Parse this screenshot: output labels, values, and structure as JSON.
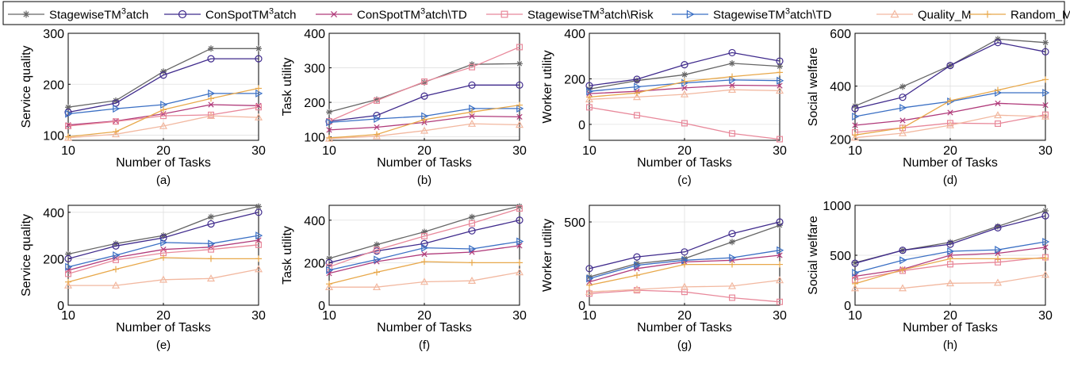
{
  "legend": {
    "placement": "top",
    "entries": [
      {
        "name": "StagewiseTM",
        "sup": "3",
        "suffix": "atch",
        "color": "#666666",
        "marker": "star"
      },
      {
        "name": "ConSpotTM",
        "sup": "3",
        "suffix": "atch",
        "color": "#3f2a8c",
        "marker": "circle"
      },
      {
        "name": "ConSpotTM",
        "sup": "3",
        "suffix": "atch\\TD",
        "color": "#b03a7a",
        "marker": "x"
      },
      {
        "name": "StagewiseTM",
        "sup": "3",
        "suffix": "atch\\Risk",
        "color": "#e8889a",
        "marker": "square"
      },
      {
        "name": "StagewiseTM",
        "sup": "3",
        "suffix": "atch\\TD",
        "color": "#3a6fc4",
        "marker": "triangle-right"
      },
      {
        "name": "Quality_M",
        "sup": "",
        "suffix": "",
        "color": "#f2b8a0",
        "marker": "triangle-up"
      },
      {
        "name": "Random_M",
        "sup": "",
        "suffix": "",
        "color": "#e8a84a",
        "marker": "plus"
      }
    ]
  },
  "chart_data": [
    {
      "type": "line",
      "caption": "(a)",
      "xlabel": "Number of Tasks",
      "ylabel": "Service quality",
      "x": [
        10,
        15,
        20,
        25,
        30
      ],
      "xlim": [
        10,
        30
      ],
      "ylim": [
        90,
        300
      ],
      "yticks": [
        100,
        200,
        300
      ],
      "grid": true,
      "series": [
        {
          "name": "StagewiseTM3atch",
          "values": [
            155,
            168,
            225,
            270,
            270
          ]
        },
        {
          "name": "ConSpotTM3atch",
          "values": [
            145,
            163,
            218,
            250,
            250
          ]
        },
        {
          "name": "ConSpotTM3atch\\TD",
          "values": [
            120,
            128,
            142,
            160,
            158
          ]
        },
        {
          "name": "StagewiseTM3atch\\Risk",
          "values": [
            118,
            127,
            138,
            140,
            155
          ]
        },
        {
          "name": "StagewiseTM3atch\\TD",
          "values": [
            142,
            152,
            160,
            182,
            182
          ]
        },
        {
          "name": "Quality_M",
          "values": [
            95,
            102,
            118,
            138,
            135
          ]
        },
        {
          "name": "Random_M",
          "values": [
            97,
            107,
            150,
            172,
            192
          ]
        }
      ]
    },
    {
      "type": "line",
      "caption": "(b)",
      "xlabel": "Number of Tasks",
      "ylabel": "Task utility",
      "x": [
        10,
        15,
        20,
        25,
        30
      ],
      "xlim": [
        10,
        30
      ],
      "ylim": [
        90,
        400
      ],
      "yticks": [
        100,
        200,
        300,
        400
      ],
      "grid": true,
      "series": [
        {
          "name": "StagewiseTM3atch",
          "values": [
            172,
            208,
            258,
            310,
            312
          ]
        },
        {
          "name": "ConSpotTM3atch",
          "values": [
            145,
            162,
            218,
            250,
            250
          ]
        },
        {
          "name": "ConSpotTM3atch\\TD",
          "values": [
            120,
            128,
            142,
            160,
            158
          ]
        },
        {
          "name": "StagewiseTM3atch\\Risk",
          "values": [
            145,
            205,
            260,
            302,
            360
          ]
        },
        {
          "name": "StagewiseTM3atch\\TD",
          "values": [
            142,
            152,
            160,
            182,
            182
          ]
        },
        {
          "name": "Quality_M",
          "values": [
            95,
            102,
            118,
            138,
            135
          ]
        },
        {
          "name": "Random_M",
          "values": [
            97,
            107,
            150,
            172,
            192
          ]
        }
      ]
    },
    {
      "type": "line",
      "caption": "(c)",
      "xlabel": "Number of Tasks",
      "ylabel": "Worker utility",
      "x": [
        10,
        15,
        20,
        25,
        30
      ],
      "xlim": [
        10,
        30
      ],
      "ylim": [
        -70,
        400
      ],
      "yticks": [
        0,
        200,
        400
      ],
      "grid": true,
      "series": [
        {
          "name": "StagewiseTM3atch",
          "values": [
            155,
            192,
            218,
            268,
            255
          ]
        },
        {
          "name": "ConSpotTM3atch",
          "values": [
            170,
            198,
            262,
            315,
            278
          ]
        },
        {
          "name": "ConSpotTM3atch\\TD",
          "values": [
            135,
            145,
            160,
            172,
            170
          ]
        },
        {
          "name": "StagewiseTM3atch\\Risk",
          "values": [
            75,
            40,
            5,
            -40,
            -65
          ]
        },
        {
          "name": "StagewiseTM3atch\\TD",
          "values": [
            145,
            165,
            182,
            195,
            192
          ]
        },
        {
          "name": "Quality_M",
          "values": [
            110,
            120,
            132,
            152,
            148
          ]
        },
        {
          "name": "Random_M",
          "values": [
            120,
            138,
            188,
            210,
            228
          ]
        }
      ]
    },
    {
      "type": "line",
      "caption": "(d)",
      "xlabel": "Number of Tasks",
      "ylabel": "Social welfare",
      "x": [
        10,
        15,
        20,
        25,
        30
      ],
      "xlim": [
        10,
        30
      ],
      "ylim": [
        195,
        600
      ],
      "yticks": [
        200,
        400,
        600
      ],
      "grid": true,
      "series": [
        {
          "name": "StagewiseTM3atch",
          "values": [
            325,
            398,
            478,
            578,
            565
          ]
        },
        {
          "name": "ConSpotTM3atch",
          "values": [
            315,
            358,
            478,
            565,
            530
          ]
        },
        {
          "name": "ConSpotTM3atch\\TD",
          "values": [
            252,
            270,
            300,
            335,
            328
          ]
        },
        {
          "name": "StagewiseTM3atch\\Risk",
          "values": [
            225,
            242,
            260,
            258,
            292
          ]
        },
        {
          "name": "StagewiseTM3atch\\TD",
          "values": [
            285,
            318,
            342,
            375,
            375
          ]
        },
        {
          "name": "Quality_M",
          "values": [
            205,
            222,
            252,
            290,
            285
          ]
        },
        {
          "name": "Random_M",
          "values": [
            215,
            242,
            345,
            385,
            425
          ]
        }
      ]
    },
    {
      "type": "line",
      "caption": "(e)",
      "xlabel": "Number of Tasks",
      "ylabel": "Service quality",
      "x": [
        10,
        15,
        20,
        25,
        30
      ],
      "xlim": [
        10,
        30
      ],
      "ylim": [
        0,
        430
      ],
      "yticks": [
        0,
        200,
        400
      ],
      "grid": true,
      "series": [
        {
          "name": "StagewiseTM3atch",
          "values": [
            220,
            265,
            300,
            380,
            425
          ]
        },
        {
          "name": "ConSpotTM3atch",
          "values": [
            200,
            255,
            290,
            350,
            400
          ]
        },
        {
          "name": "ConSpotTM3atch\\TD",
          "values": [
            150,
            205,
            240,
            250,
            280
          ]
        },
        {
          "name": "StagewiseTM3atch\\Risk",
          "values": [
            135,
            195,
            225,
            240,
            260
          ]
        },
        {
          "name": "StagewiseTM3atch\\TD",
          "values": [
            165,
            215,
            270,
            265,
            300
          ]
        },
        {
          "name": "Quality_M",
          "values": [
            85,
            85,
            110,
            115,
            155
          ]
        },
        {
          "name": "Random_M",
          "values": [
            100,
            155,
            205,
            200,
            200
          ]
        }
      ]
    },
    {
      "type": "line",
      "caption": "(f)",
      "xlabel": "Number of Tasks",
      "ylabel": "Task utility",
      "x": [
        10,
        15,
        20,
        25,
        30
      ],
      "xlim": [
        10,
        30
      ],
      "ylim": [
        0,
        470
      ],
      "yticks": [
        0,
        200,
        400
      ],
      "grid": true,
      "series": [
        {
          "name": "StagewiseTM3atch",
          "values": [
            220,
            285,
            345,
            415,
            465
          ]
        },
        {
          "name": "ConSpotTM3atch",
          "values": [
            200,
            255,
            290,
            350,
            400
          ]
        },
        {
          "name": "ConSpotTM3atch\\TD",
          "values": [
            150,
            205,
            240,
            250,
            280
          ]
        },
        {
          "name": "StagewiseTM3atch\\Risk",
          "values": [
            180,
            260,
            325,
            385,
            455
          ]
        },
        {
          "name": "StagewiseTM3atch\\TD",
          "values": [
            165,
            215,
            270,
            265,
            300
          ]
        },
        {
          "name": "Quality_M",
          "values": [
            85,
            85,
            110,
            115,
            155
          ]
        },
        {
          "name": "Random_M",
          "values": [
            100,
            155,
            205,
            200,
            200
          ]
        }
      ]
    },
    {
      "type": "line",
      "caption": "(g)",
      "xlabel": "Number of Tasks",
      "ylabel": "Worker utility",
      "x": [
        10,
        15,
        20,
        25,
        30
      ],
      "xlim": [
        10,
        30
      ],
      "ylim": [
        0,
        600
      ],
      "yticks": [
        0,
        500
      ],
      "grid": true,
      "series": [
        {
          "name": "StagewiseTM3atch",
          "values": [
            170,
            250,
            280,
            380,
            480
          ]
        },
        {
          "name": "ConSpotTM3atch",
          "values": [
            220,
            290,
            320,
            430,
            500
          ]
        },
        {
          "name": "ConSpotTM3atch\\TD",
          "values": [
            140,
            220,
            260,
            270,
            300
          ]
        },
        {
          "name": "StagewiseTM3atch\\Risk",
          "values": [
            70,
            90,
            80,
            45,
            20
          ]
        },
        {
          "name": "StagewiseTM3atch\\TD",
          "values": [
            160,
            240,
            270,
            285,
            330
          ]
        },
        {
          "name": "Quality_M",
          "values": [
            80,
            95,
            110,
            115,
            150
          ]
        },
        {
          "name": "Random_M",
          "values": [
            120,
            180,
            245,
            245,
            245
          ]
        }
      ]
    },
    {
      "type": "line",
      "caption": "(h)",
      "xlabel": "Number of Tasks",
      "ylabel": "Social welfare",
      "x": [
        10,
        15,
        20,
        25,
        30
      ],
      "xlim": [
        10,
        30
      ],
      "ylim": [
        0,
        1000
      ],
      "yticks": [
        0,
        500,
        1000
      ],
      "grid": true,
      "series": [
        {
          "name": "StagewiseTM3atch",
          "values": [
            425,
            550,
            630,
            790,
            945
          ]
        },
        {
          "name": "ConSpotTM3atch",
          "values": [
            420,
            550,
            610,
            775,
            895
          ]
        },
        {
          "name": "ConSpotTM3atch\\TD",
          "values": [
            290,
            360,
            500,
            520,
            580
          ]
        },
        {
          "name": "StagewiseTM3atch\\Risk",
          "values": [
            255,
            345,
            410,
            430,
            480
          ]
        },
        {
          "name": "StagewiseTM3atch\\TD",
          "values": [
            325,
            450,
            540,
            555,
            635
          ]
        },
        {
          "name": "Quality_M",
          "values": [
            170,
            170,
            220,
            225,
            305
          ]
        },
        {
          "name": "Random_M",
          "values": [
            215,
            355,
            465,
            465,
            470
          ]
        }
      ]
    }
  ]
}
